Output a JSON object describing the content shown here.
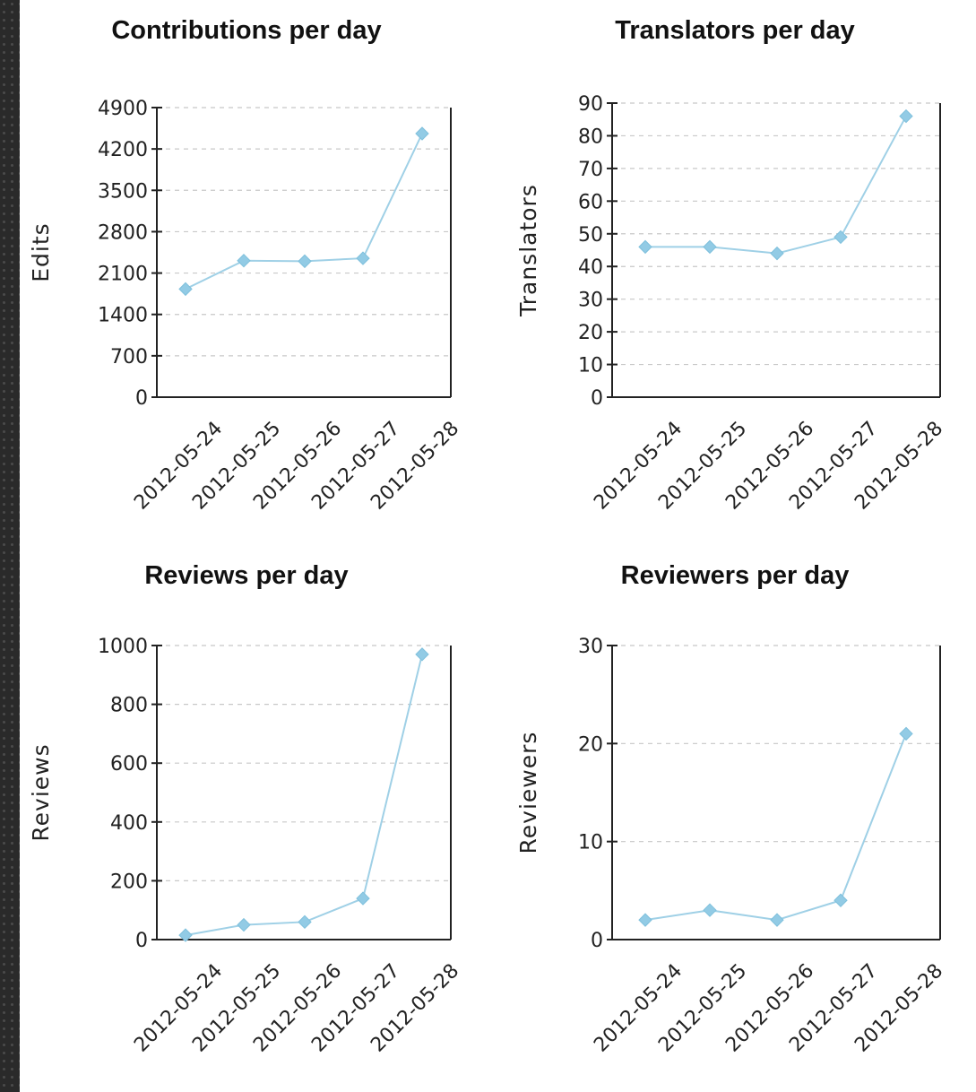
{
  "colors": {
    "series": "#9fd0e6",
    "marker": "#92cbe5",
    "grid": "#c8c8c8",
    "axis": "#222222"
  },
  "chart_data": [
    {
      "type": "line",
      "title": "Contributions per day",
      "xlabel": "",
      "ylabel": "Edits",
      "categories": [
        "2012-05-24",
        "2012-05-25",
        "2012-05-26",
        "2012-05-27",
        "2012-05-28"
      ],
      "series": [
        {
          "values": [
            1830,
            2310,
            2300,
            2350,
            4460
          ]
        }
      ],
      "ylim": [
        0,
        4900
      ],
      "yticks": [
        0,
        700,
        1400,
        2100,
        2800,
        3500,
        4200,
        4900
      ],
      "grid": true,
      "legend": "none"
    },
    {
      "type": "line",
      "title": "Translators per day",
      "xlabel": "",
      "ylabel": "Translators",
      "categories": [
        "2012-05-24",
        "2012-05-25",
        "2012-05-26",
        "2012-05-27",
        "2012-05-28"
      ],
      "series": [
        {
          "values": [
            46,
            46,
            44,
            49,
            86
          ]
        }
      ],
      "ylim": [
        0,
        90
      ],
      "yticks": [
        0,
        10,
        20,
        30,
        40,
        50,
        60,
        70,
        80,
        90
      ],
      "grid": true,
      "legend": "none"
    },
    {
      "type": "line",
      "title": "Reviews per day",
      "xlabel": "",
      "ylabel": "Reviews",
      "categories": [
        "2012-05-24",
        "2012-05-25",
        "2012-05-26",
        "2012-05-27",
        "2012-05-28"
      ],
      "series": [
        {
          "values": [
            15,
            50,
            60,
            140,
            970
          ]
        }
      ],
      "ylim": [
        0,
        1000
      ],
      "yticks": [
        0,
        200,
        400,
        600,
        800,
        1000
      ],
      "grid": true,
      "legend": "none"
    },
    {
      "type": "line",
      "title": "Reviewers per day",
      "xlabel": "",
      "ylabel": "Reviewers",
      "categories": [
        "2012-05-24",
        "2012-05-25",
        "2012-05-26",
        "2012-05-27",
        "2012-05-28"
      ],
      "series": [
        {
          "values": [
            2,
            3,
            2,
            4,
            21
          ]
        }
      ],
      "ylim": [
        0,
        30
      ],
      "yticks": [
        0,
        10,
        20,
        30
      ],
      "grid": true,
      "legend": "none"
    }
  ]
}
